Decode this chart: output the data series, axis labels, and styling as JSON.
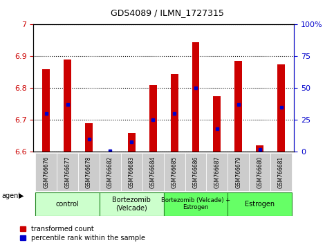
{
  "title": "GDS4089 / ILMN_1727315",
  "samples": [
    "GSM766676",
    "GSM766677",
    "GSM766678",
    "GSM766682",
    "GSM766683",
    "GSM766684",
    "GSM766685",
    "GSM766686",
    "GSM766687",
    "GSM766679",
    "GSM766680",
    "GSM766681"
  ],
  "red_values": [
    6.86,
    6.89,
    6.69,
    6.6,
    6.66,
    6.81,
    6.845,
    6.945,
    6.775,
    6.885,
    6.62,
    6.875
  ],
  "blue_values_pct": [
    30,
    37,
    10,
    1,
    8,
    25,
    30,
    50,
    18,
    37,
    2,
    35
  ],
  "y_min": 6.6,
  "y_max": 7.0,
  "y_ticks": [
    6.6,
    6.7,
    6.8,
    6.9,
    7.0
  ],
  "y_tick_labels": [
    "6.6",
    "6.7",
    "6.8",
    "6.9",
    "7"
  ],
  "right_y_ticks": [
    0,
    25,
    50,
    75,
    100
  ],
  "right_y_tick_labels": [
    "0",
    "25",
    "50",
    "75",
    "100%"
  ],
  "groups": [
    {
      "label": "control",
      "start": 0,
      "end": 3,
      "color": "#ccffcc",
      "small_font": false
    },
    {
      "label": "Bortezomib\n(Velcade)",
      "start": 3,
      "end": 6,
      "color": "#ccffcc",
      "small_font": false
    },
    {
      "label": "Bortezomib (Velcade) +\nEstrogen",
      "start": 6,
      "end": 9,
      "color": "#66ff66",
      "small_font": true
    },
    {
      "label": "Estrogen",
      "start": 9,
      "end": 12,
      "color": "#66ff66",
      "small_font": false
    }
  ],
  "bar_color": "#cc0000",
  "marker_color": "#0000cc",
  "bar_width": 0.35,
  "legend_red_label": "transformed count",
  "legend_blue_label": "percentile rank within the sample",
  "agent_label": "agent",
  "left_axis_color": "#cc0000",
  "right_axis_color": "#0000cc",
  "group_border_color": "#228822",
  "sample_bg_color": "#cccccc",
  "sample_text_color": "#000000"
}
